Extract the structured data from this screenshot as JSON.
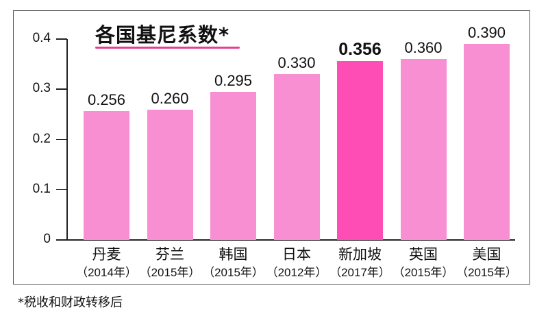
{
  "chart_data": {
    "type": "bar",
    "title": "各国基尼系数*",
    "xlabel": "",
    "ylabel": "",
    "ylim": [
      0,
      0.4
    ],
    "yticks": [
      "0",
      "0.1",
      "0.2",
      "0.3",
      "0.4"
    ],
    "grid": false,
    "legend": null,
    "categories": [
      "丹麦",
      "芬兰",
      "韩国",
      "日本",
      "新加坡",
      "英国",
      "美国"
    ],
    "category_years": [
      "（2014年）",
      "（2015年）",
      "（2015年）",
      "（2012年）",
      "（2017年）",
      "（2015年）",
      "（2015年）"
    ],
    "values": [
      0.256,
      0.26,
      0.295,
      0.33,
      0.356,
      0.36,
      0.39
    ],
    "value_labels": [
      "0.256",
      "0.260",
      "0.295",
      "0.330",
      "0.356",
      "0.360",
      "0.390"
    ],
    "highlighted_category": "新加坡",
    "footnote": "*税收和财政转移后"
  },
  "colors": {
    "bar": "#f88fd2",
    "bar_highlight": "#ff4db6",
    "title_underline": "#e0409a",
    "axis": "#222222"
  }
}
